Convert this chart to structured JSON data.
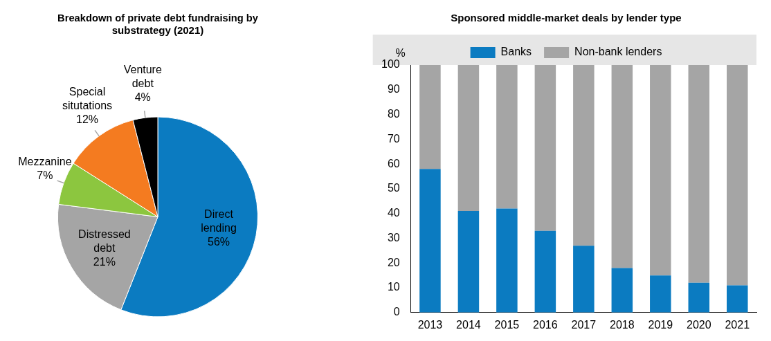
{
  "chart_data": [
    {
      "type": "pie",
      "title": "Breakdown of private debt fundraising by substrategy (2021)",
      "categories": [
        "Direct lending",
        "Distressed debt",
        "Mezzanine",
        "Special situtations",
        "Venture debt"
      ],
      "values": [
        56,
        21,
        7,
        12,
        4
      ],
      "colors": [
        "#0b7bc1",
        "#a5a5a5",
        "#8cc63f",
        "#f47b20",
        "#000000"
      ],
      "value_labels": [
        "56%",
        "21%",
        "7%",
        "12%",
        "4%"
      ],
      "legend": false
    },
    {
      "type": "bar",
      "title": "Sponsored middle-market deals by lender type",
      "ylabel": "%",
      "categories": [
        "2013",
        "2014",
        "2015",
        "2016",
        "2017",
        "2018",
        "2019",
        "2020",
        "2021"
      ],
      "stacked": true,
      "legend": "top",
      "grid": false,
      "ylim": [
        0,
        100
      ],
      "yticks": [
        0,
        10,
        20,
        30,
        40,
        50,
        60,
        70,
        80,
        90,
        100
      ],
      "series": [
        {
          "name": "Banks",
          "color": "#0b7bc1",
          "values": [
            58,
            41,
            42,
            33,
            27,
            18,
            15,
            12,
            11
          ]
        },
        {
          "name": "Non-bank lenders",
          "color": "#a5a5a5",
          "values": [
            42,
            59,
            58,
            67,
            73,
            82,
            85,
            88,
            89
          ]
        }
      ]
    }
  ]
}
